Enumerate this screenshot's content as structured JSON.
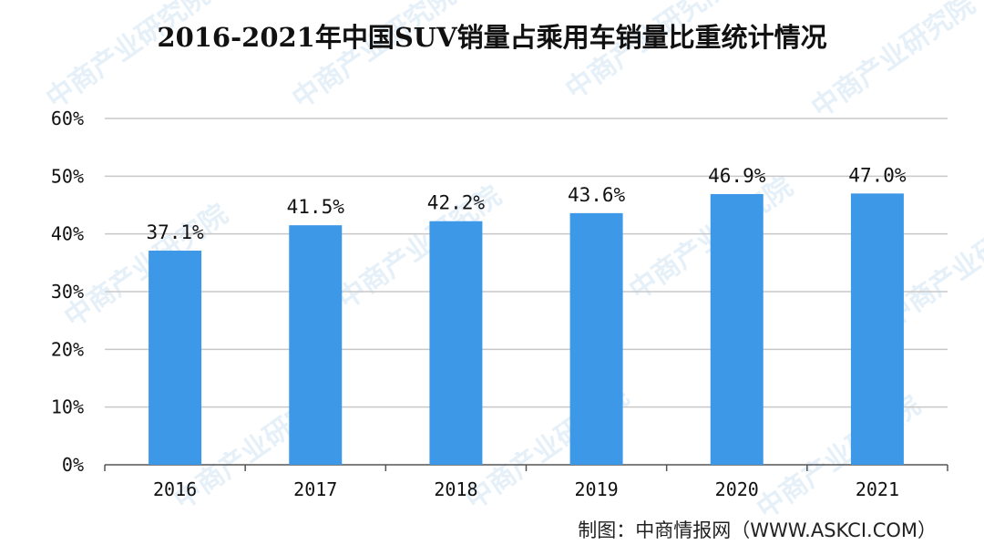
{
  "title": "2016-2021年中国SUV销量占乘用车销量比重统计情况",
  "source": "制图：中商情报网（WWW.ASKCI.COM）",
  "watermark": "中商产业研究院",
  "colors": {
    "bar": "#3d98e8",
    "gridline": "#c8c8c8",
    "axis": "#555555",
    "text": "#111111",
    "watermark": "#d2e4f2"
  },
  "chart_data": {
    "type": "bar",
    "title": "2016-2021年中国SUV销量占乘用车销量比重统计情况",
    "categories": [
      "2016",
      "2017",
      "2018",
      "2019",
      "2020",
      "2021"
    ],
    "values": [
      37.1,
      41.5,
      42.2,
      43.6,
      46.9,
      47.0
    ],
    "data_labels": [
      "37.1%",
      "41.5%",
      "42.2%",
      "43.6%",
      "46.9%",
      "47.0%"
    ],
    "y_ticks": [
      0,
      10,
      20,
      30,
      40,
      50,
      60
    ],
    "y_tick_labels": [
      "0%",
      "10%",
      "20%",
      "30%",
      "40%",
      "50%",
      "60%"
    ],
    "ylim": [
      0,
      60
    ],
    "xlabel": "",
    "ylabel": "",
    "grid": true,
    "legend": "none"
  }
}
